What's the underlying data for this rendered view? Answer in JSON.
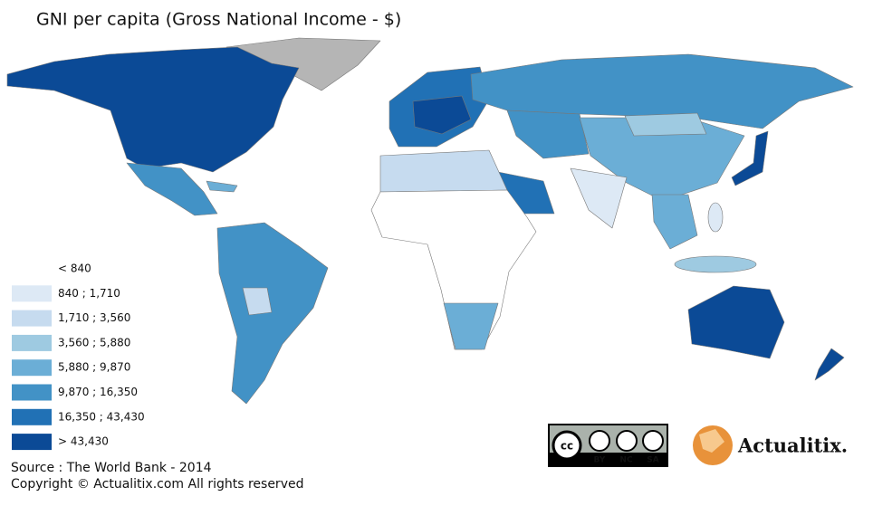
{
  "title": "GNI per capita (Gross National Income - $)",
  "legend": {
    "items": [
      {
        "label": "< 840",
        "color": "#ffffff"
      },
      {
        "label": "840 ; 1,710",
        "color": "#dde9f5"
      },
      {
        "label": "1,710 ; 3,560",
        "color": "#c6dbef"
      },
      {
        "label": "3,560 ; 5,880",
        "color": "#9ecae1"
      },
      {
        "label": "5,880 ; 9,870",
        "color": "#6baed6"
      },
      {
        "label": "9,870 ; 16,350",
        "color": "#4292c6"
      },
      {
        "label": "16,350 ; 43,430",
        "color": "#2171b5"
      },
      {
        "label": "> 43,430",
        "color": "#0b4a96"
      }
    ]
  },
  "source": "Source : The World Bank - 2014",
  "copyright": "Copyright © Actualitix.com All rights reserved",
  "license": {
    "labels": [
      "BY",
      "NC",
      "SA"
    ]
  },
  "logo": {
    "text": "Actualitix."
  }
}
